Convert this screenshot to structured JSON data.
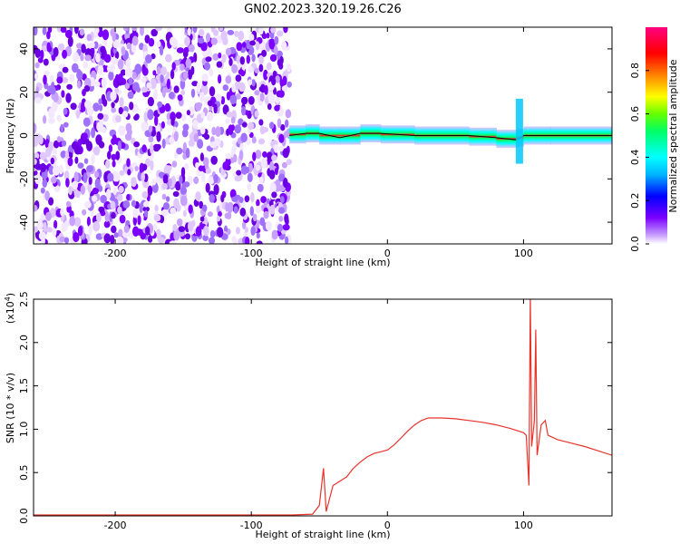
{
  "title": "GN02.2023.320.19.26.C26",
  "chart_data": [
    {
      "type": "heatmap",
      "xlabel": "Height of straight line (km)",
      "ylabel": "Frequency (Hz)",
      "xlim": [
        -260,
        165
      ],
      "ylim": [
        -50,
        50
      ],
      "xticks": [
        -200,
        -100,
        0,
        100
      ],
      "yticks": [
        -40,
        -20,
        0,
        20,
        40
      ],
      "colorbar": {
        "label": "Normalized spectral amplitude",
        "range": [
          0.0,
          1.0
        ],
        "ticks": [
          "0.0",
          "0.2",
          "0.4",
          "0.6",
          "0.8"
        ],
        "colormap": [
          "#ffffff",
          "#c8a0ff",
          "#7b00ff",
          "#0000ff",
          "#00b4ff",
          "#00ffff",
          "#00ff66",
          "#66ff00",
          "#ffff00",
          "#ff8000",
          "#ff0000",
          "#ff0080"
        ]
      },
      "noise_region_x": [
        -260,
        -72
      ],
      "ridge": [
        {
          "x": -72,
          "f": 0
        },
        {
          "x": -60,
          "f": 1
        },
        {
          "x": -50,
          "f": 1
        },
        {
          "x": -35,
          "f": -1
        },
        {
          "x": -20,
          "f": 1
        },
        {
          "x": -5,
          "f": 1
        },
        {
          "x": 20,
          "f": 0
        },
        {
          "x": 60,
          "f": 0
        },
        {
          "x": 80,
          "f": -1
        },
        {
          "x": 95,
          "f": -2
        },
        {
          "x": 100,
          "f": 0
        },
        {
          "x": 120,
          "f": 0
        },
        {
          "x": 165,
          "f": 0
        }
      ]
    },
    {
      "type": "line",
      "xlabel": "Height of straight line (km)",
      "ylabel": "SNR (10 * v/v)",
      "multiplier": "(x10",
      "multiplier_exp": "4",
      "multiplier_close": ")",
      "xlim": [
        -260,
        165
      ],
      "ylim": [
        0,
        2.5
      ],
      "xticks": [
        -200,
        -100,
        0,
        100
      ],
      "yticks": [
        "0.0",
        "0.5",
        "1.0",
        "1.5",
        "2.0",
        "2.5"
      ],
      "series": [
        {
          "color": "#e8332a",
          "points": [
            [
              -260,
              0.01
            ],
            [
              -200,
              0.01
            ],
            [
              -150,
              0.01
            ],
            [
              -100,
              0.01
            ],
            [
              -70,
              0.01
            ],
            [
              -55,
              0.02
            ],
            [
              -50,
              0.12
            ],
            [
              -47,
              0.55
            ],
            [
              -45,
              0.05
            ],
            [
              -40,
              0.35
            ],
            [
              -35,
              0.4
            ],
            [
              -30,
              0.45
            ],
            [
              -25,
              0.55
            ],
            [
              -20,
              0.62
            ],
            [
              -15,
              0.68
            ],
            [
              -10,
              0.72
            ],
            [
              -5,
              0.74
            ],
            [
              0,
              0.76
            ],
            [
              5,
              0.82
            ],
            [
              10,
              0.9
            ],
            [
              15,
              0.98
            ],
            [
              20,
              1.05
            ],
            [
              25,
              1.1
            ],
            [
              30,
              1.13
            ],
            [
              35,
              1.13
            ],
            [
              40,
              1.13
            ],
            [
              50,
              1.12
            ],
            [
              60,
              1.1
            ],
            [
              70,
              1.08
            ],
            [
              80,
              1.05
            ],
            [
              90,
              1.01
            ],
            [
              100,
              0.96
            ],
            [
              102,
              0.93
            ],
            [
              104,
              0.35
            ],
            [
              105,
              2.55
            ],
            [
              106,
              0.8
            ],
            [
              108,
              1.1
            ],
            [
              109,
              2.15
            ],
            [
              110,
              0.7
            ],
            [
              113,
              1.05
            ],
            [
              116,
              1.1
            ],
            [
              118,
              0.93
            ],
            [
              125,
              0.88
            ],
            [
              135,
              0.84
            ],
            [
              145,
              0.8
            ],
            [
              155,
              0.75
            ],
            [
              165,
              0.7
            ]
          ]
        }
      ]
    }
  ]
}
